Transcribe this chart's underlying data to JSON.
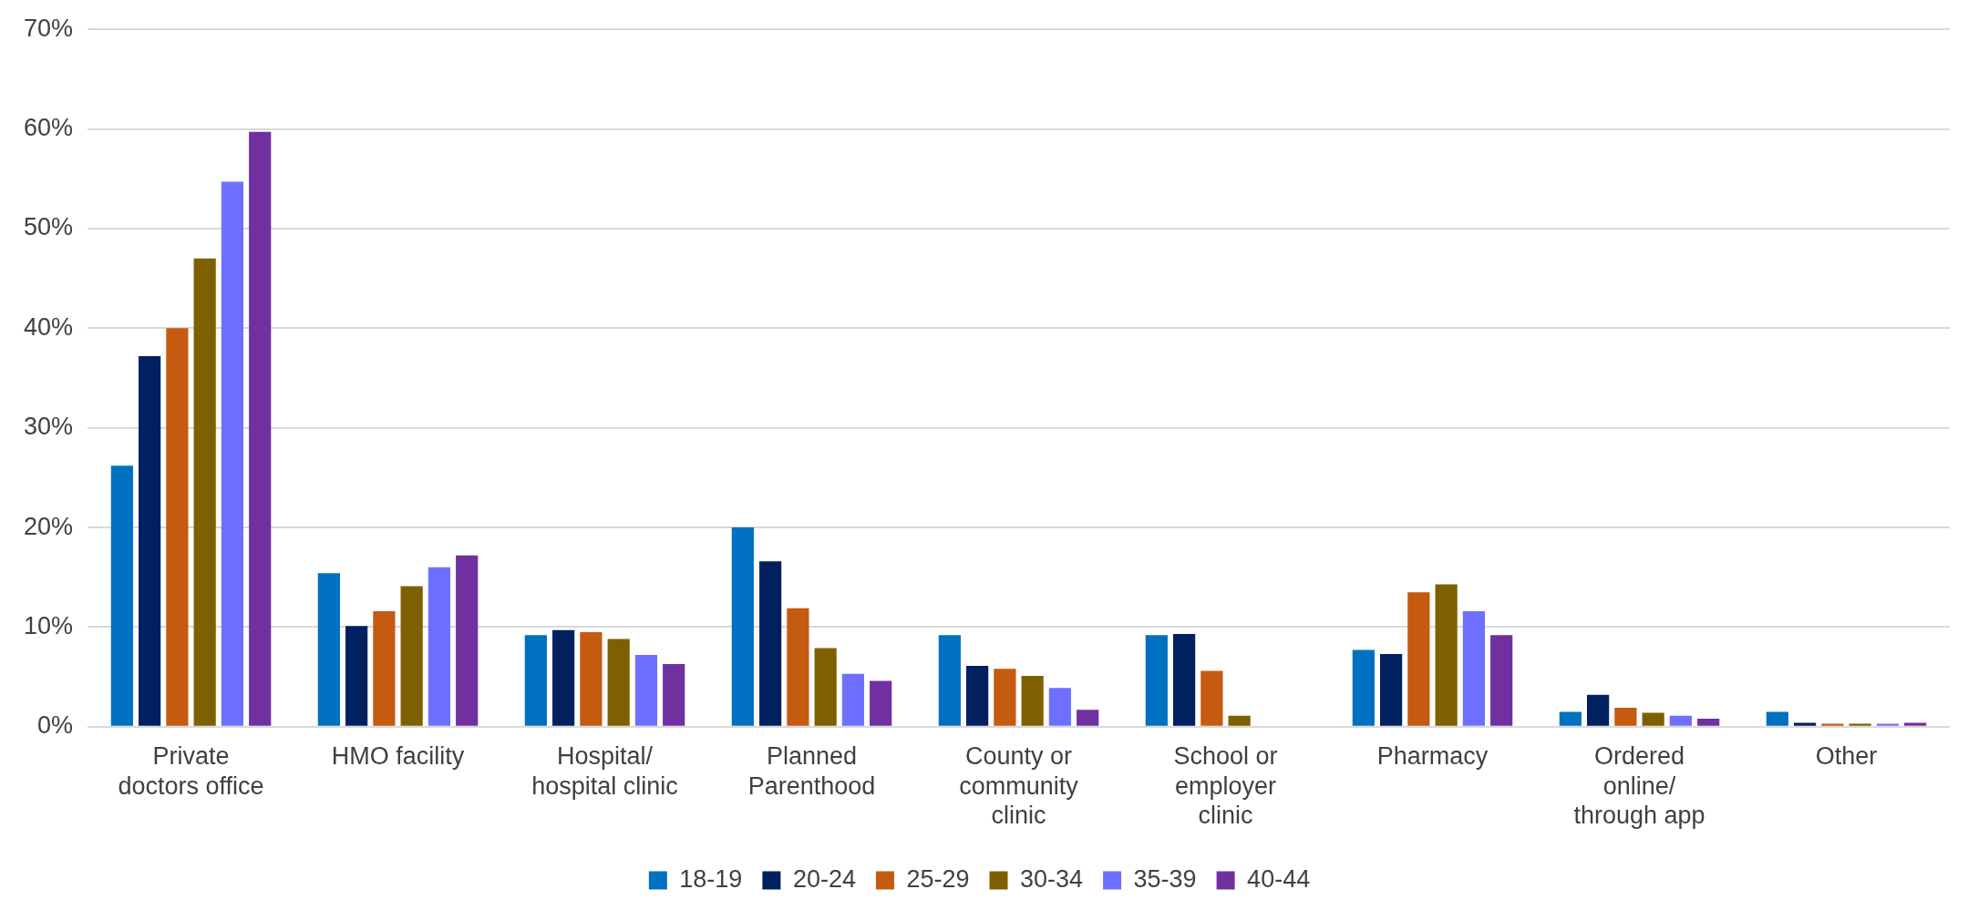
{
  "chart_data": {
    "type": "bar",
    "categories": [
      "Private\ndoctors office",
      "HMO facility",
      "Hospital/\nhospital clinic",
      "Planned\nParenthood",
      "County or\ncommunity\nclinic",
      "School or\nemployer\nclinic",
      "Pharmacy",
      "Ordered\nonline/\nthrough app",
      "Other"
    ],
    "series": [
      {
        "name": "18-19",
        "color": "#0070c0",
        "values": [
          26.2,
          15.4,
          9.2,
          20.0,
          9.2,
          9.2,
          7.7,
          1.5,
          1.5
        ]
      },
      {
        "name": "20-24",
        "color": "#002060",
        "values": [
          37.2,
          10.1,
          9.7,
          16.6,
          6.1,
          9.3,
          7.3,
          3.2,
          0.4
        ]
      },
      {
        "name": "25-29",
        "color": "#c55a11",
        "values": [
          40.0,
          11.6,
          9.5,
          11.9,
          5.8,
          5.6,
          13.5,
          1.9,
          0.3
        ]
      },
      {
        "name": "30-34",
        "color": "#7f6000",
        "values": [
          47.0,
          14.1,
          8.8,
          7.9,
          5.1,
          1.1,
          14.3,
          1.4,
          0.3
        ]
      },
      {
        "name": "35-39",
        "color": "#6f6fff",
        "values": [
          54.7,
          16.0,
          7.2,
          5.3,
          3.9,
          0,
          11.6,
          1.1,
          0.3
        ]
      },
      {
        "name": "40-44",
        "color": "#7030a0",
        "values": [
          59.7,
          17.2,
          6.3,
          4.6,
          1.7,
          0,
          9.2,
          0.8,
          0.4
        ]
      }
    ],
    "ylim": [
      0,
      70
    ],
    "yticks": [
      {
        "value": 0,
        "label": "0%"
      },
      {
        "value": 10,
        "label": "10%"
      },
      {
        "value": 20,
        "label": "20%"
      },
      {
        "value": 30,
        "label": "30%"
      },
      {
        "value": 40,
        "label": "40%"
      },
      {
        "value": 50,
        "label": "50%"
      },
      {
        "value": 60,
        "label": "60%"
      },
      {
        "value": 70,
        "label": "70%"
      }
    ],
    "grid": "y",
    "legend": "bottom"
  }
}
